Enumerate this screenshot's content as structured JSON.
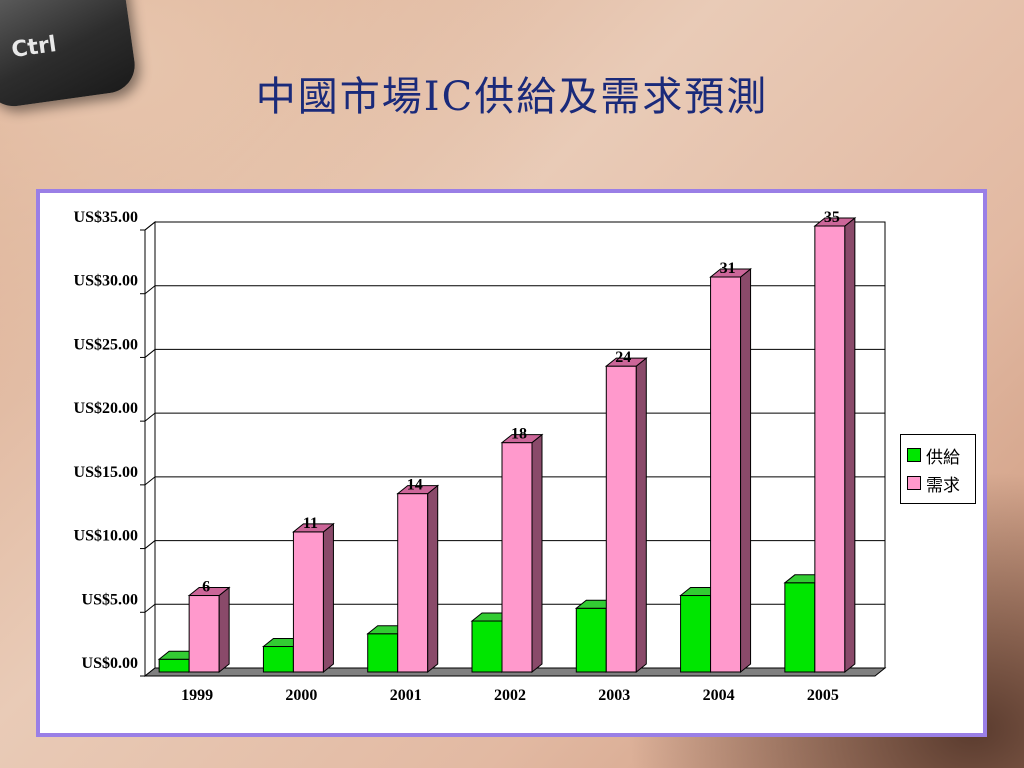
{
  "slide": {
    "title": "中國市場IC供給及需求預測",
    "key_label": "Ctrl"
  },
  "colors": {
    "supply": "#00e600",
    "demand": "#ff99cc",
    "border": "#9a7fe6",
    "title": "#1a2a7a"
  },
  "chart_data": {
    "type": "bar",
    "categories": [
      "1999",
      "2000",
      "2001",
      "2002",
      "2003",
      "2004",
      "2005"
    ],
    "series": [
      {
        "name": "供給",
        "values": [
          1,
          2,
          3,
          4,
          5,
          6,
          7
        ]
      },
      {
        "name": "需求",
        "values": [
          6,
          11,
          14,
          18,
          24,
          31,
          35
        ]
      }
    ],
    "data_labels": [
      "6",
      "11",
      "14",
      "18",
      "24",
      "31",
      "35"
    ],
    "y_tick_labels": [
      "US$0.00",
      "US$5.00",
      "US$10.00",
      "US$15.00",
      "US$20.00",
      "US$25.00",
      "US$30.00",
      "US$35.00"
    ],
    "y_ticks": [
      0,
      5,
      10,
      15,
      20,
      25,
      30,
      35
    ],
    "ylim": [
      0,
      35
    ],
    "grid": true,
    "legend_position": "right",
    "title": "",
    "xlabel": "",
    "ylabel": ""
  }
}
